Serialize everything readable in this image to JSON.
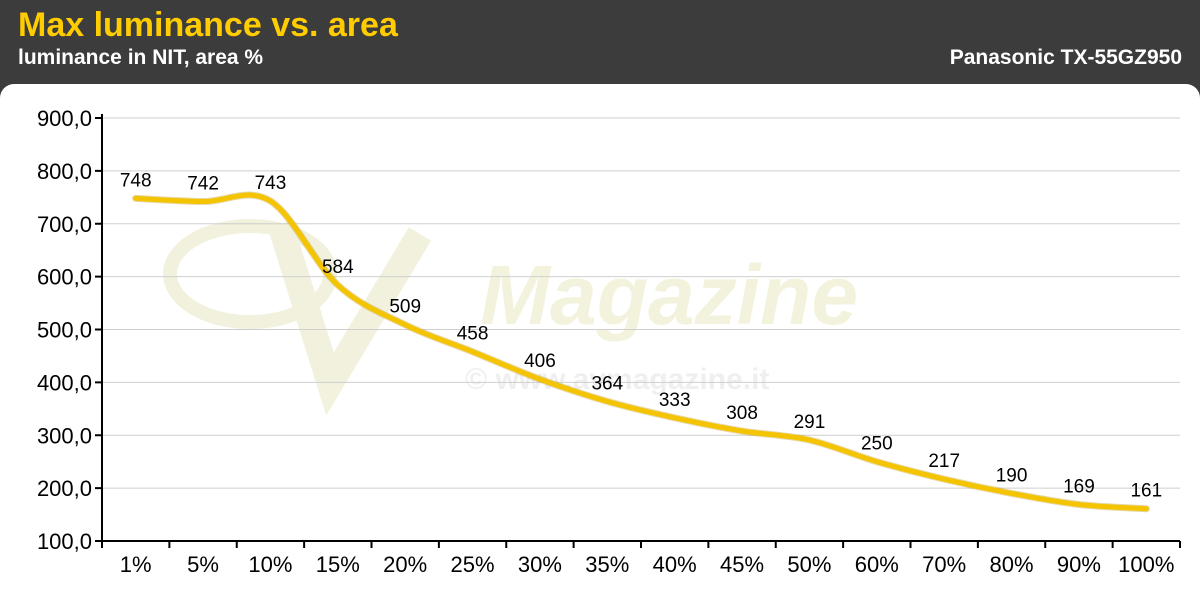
{
  "header": {
    "title": "Max luminance vs. area",
    "subtitle": "luminance in NIT, area %",
    "device": "Panasonic TX-55GZ950"
  },
  "watermark": {
    "brand": "AV Magazine",
    "url": "© www.avmagazine.it"
  },
  "colors": {
    "header_bg": "#3c3c3c",
    "title": "#ffcc00",
    "line": "#f5c400",
    "grid": "#cfcfcf"
  },
  "chart_data": {
    "type": "line",
    "title": "Max luminance vs. area",
    "subtitle": "luminance in NIT, area %",
    "categories": [
      "1%",
      "5%",
      "10%",
      "15%",
      "20%",
      "25%",
      "30%",
      "35%",
      "40%",
      "45%",
      "50%",
      "60%",
      "70%",
      "80%",
      "90%",
      "100%"
    ],
    "series": [
      {
        "values": [
          748,
          742,
          743,
          584,
          509,
          458,
          406,
          364,
          333,
          308,
          291,
          250,
          217,
          190,
          169,
          161
        ]
      }
    ],
    "ylim": [
      100,
      900
    ],
    "yticks": [
      "900,0",
      "800,0",
      "700,0",
      "600,0",
      "500,0",
      "400,0",
      "300,0",
      "200,0",
      "100,0"
    ],
    "ytick_values": [
      900,
      800,
      700,
      600,
      500,
      400,
      300,
      200,
      100
    ],
    "grid": true,
    "smooth": true
  }
}
